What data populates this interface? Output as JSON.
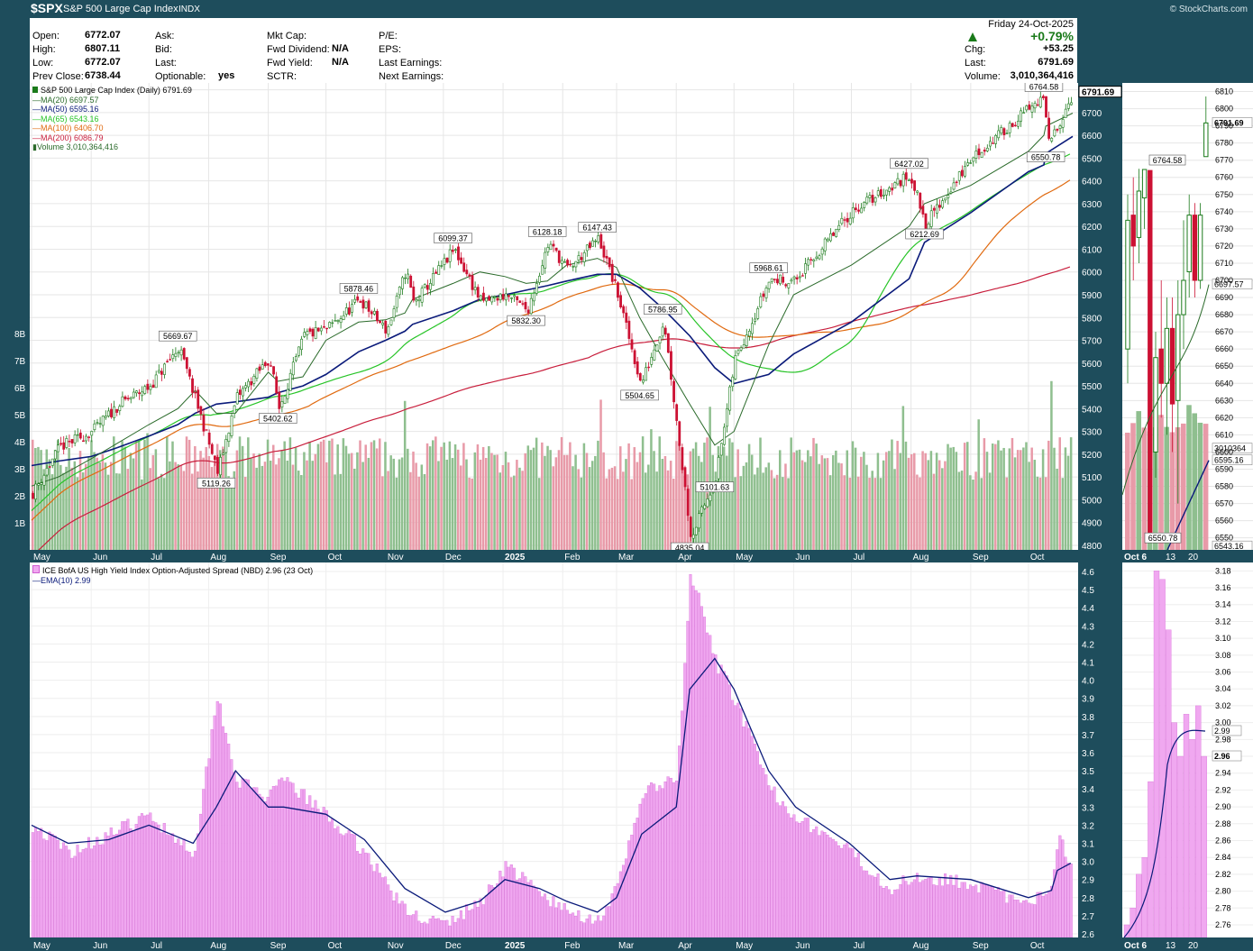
{
  "header": {
    "symbol": "$SPX",
    "name": "S&P 500 Large Cap Index",
    "type": "INDX",
    "copyright": "© StockCharts.com"
  },
  "info": {
    "col1": [
      {
        "label": "Open:",
        "value": "6772.07"
      },
      {
        "label": "High:",
        "value": "6807.11"
      },
      {
        "label": "Low:",
        "value": "6772.07"
      },
      {
        "label": "Prev Close:",
        "value": "6738.44"
      }
    ],
    "col2": [
      {
        "label": "Ask:",
        "value": ""
      },
      {
        "label": "Bid:",
        "value": ""
      },
      {
        "label": "Last:",
        "value": ""
      },
      {
        "label": "Optionable:",
        "value": "yes"
      }
    ],
    "col3": [
      {
        "label": "Mkt Cap:",
        "value": ""
      },
      {
        "label": "Fwd Dividend:",
        "value": "N/A"
      },
      {
        "label": "Fwd Yield:",
        "value": "N/A"
      },
      {
        "label": "SCTR:",
        "value": ""
      }
    ],
    "col4": [
      {
        "label": "P/E:",
        "value": ""
      },
      {
        "label": "EPS:",
        "value": ""
      },
      {
        "label": "Last Earnings:",
        "value": ""
      },
      {
        "label": "Next Earnings:",
        "value": ""
      }
    ],
    "date": "Friday  24-Oct-2025",
    "pct_change": "+0.79%",
    "chg_label": "Chg:",
    "chg_value": "+53.25",
    "last_label": "Last:",
    "last_value": "6791.69",
    "volume_label": "Volume:",
    "volume_value": "3,010,364,416"
  },
  "legend_main": [
    {
      "text": "S&P 500 Large Cap Index (Daily) 6791.69",
      "color": "#000000"
    },
    {
      "text": "MA(20) 6697.57",
      "color": "#2a6a2a"
    },
    {
      "text": "MA(50) 6595.16",
      "color": "#0a1a7a"
    },
    {
      "text": "MA(65) 6543.16",
      "color": "#27c427"
    },
    {
      "text": "MA(100) 6406.70",
      "color": "#e06a10"
    },
    {
      "text": "MA(200) 6086.79",
      "color": "#c81e3c"
    },
    {
      "text": "Volume 3,010,364,416",
      "color": "#2a6a2a"
    }
  ],
  "legend_spread": [
    {
      "text": "ICE BofA US High Yield Index Option-Adjusted Spread (NBD) 2.96 (23 Oct)",
      "color": "#000000"
    },
    {
      "text": "EMA(10) 2.99",
      "color": "#0a1a7a"
    }
  ],
  "axis": {
    "months": [
      "May",
      "Jun",
      "Jul",
      "Aug",
      "Sep",
      "Oct",
      "Nov",
      "Dec",
      "2025",
      "Feb",
      "Mar",
      "Apr",
      "May",
      "Jun",
      "Jul",
      "Aug",
      "Sep",
      "Oct"
    ],
    "zoom_months": [
      "Oct 6",
      "13",
      "20"
    ],
    "price_ticks": [
      "6800",
      "6700",
      "6600",
      "6500",
      "6400",
      "6300",
      "6200",
      "6100",
      "6000",
      "5900",
      "5800",
      "5700",
      "5600",
      "5500",
      "5400",
      "5300",
      "5200",
      "5100",
      "5000",
      "4900",
      "4800"
    ],
    "volume_ticks": [
      "8B",
      "7B",
      "6B",
      "5B",
      "4B",
      "3B",
      "2B",
      "1B"
    ],
    "zoom_price_ticks": [
      "6810",
      "6800",
      "6790",
      "6780",
      "6770",
      "6760",
      "6750",
      "6740",
      "6730",
      "6720",
      "6710",
      "6700",
      "6690",
      "6680",
      "6670",
      "6660",
      "6650",
      "6640",
      "6630",
      "6620",
      "6610",
      "6600",
      "6590",
      "6580",
      "6570",
      "6560",
      "6550"
    ],
    "spread_ticks": [
      "4.6",
      "4.5",
      "4.4",
      "4.3",
      "4.2",
      "4.1",
      "4.0",
      "3.9",
      "3.8",
      "3.7",
      "3.6",
      "3.5",
      "3.4",
      "3.3",
      "3.2",
      "3.1",
      "3.0",
      "2.9",
      "2.8",
      "2.7",
      "2.6"
    ],
    "zoom_spread_ticks": [
      "3.18",
      "3.16",
      "3.14",
      "3.12",
      "3.10",
      "3.08",
      "3.06",
      "3.04",
      "3.02",
      "3.00",
      "2.98",
      "2.96",
      "2.94",
      "2.92",
      "2.90",
      "2.88",
      "2.86",
      "2.84",
      "2.82",
      "2.80",
      "2.78",
      "2.76"
    ],
    "current_badges": {
      "price": "6791.69",
      "ma20": "6697.57",
      "volume": "3010364",
      "ma50": "6595.16",
      "ma65": "6543.16",
      "spread": "2.96",
      "ema": "2.99"
    }
  },
  "colors": {
    "background": "#1e4d5c",
    "up_candle": "#1a7a1a",
    "down_candle": "#cc1133",
    "vol_up": "#8fbf8f",
    "vol_down": "#e89aa8",
    "spread_fill": "#f0a8f0",
    "spread_edge": "#d05cd0"
  },
  "chart_data": [
    {
      "type": "line",
      "title": "S&P 500 Large Cap Index (Daily) 6791.69",
      "xlabel": "",
      "ylabel": "",
      "ylim": [
        4780,
        6830
      ],
      "x": [
        "2024-05-01",
        "2024-05-15",
        "2024-06-01",
        "2024-06-15",
        "2024-07-01",
        "2024-07-16",
        "2024-07-25",
        "2024-08-05",
        "2024-08-15",
        "2024-09-01",
        "2024-09-06",
        "2024-09-19",
        "2024-10-01",
        "2024-10-18",
        "2024-11-01",
        "2024-11-11",
        "2024-11-15",
        "2024-12-06",
        "2024-12-20",
        "2025-01-02",
        "2025-01-13",
        "2025-01-24",
        "2025-02-03",
        "2025-02-19",
        "2025-03-01",
        "2025-03-13",
        "2025-03-25",
        "2025-04-08",
        "2025-04-21",
        "2025-05-01",
        "2025-05-19",
        "2025-06-01",
        "2025-07-01",
        "2025-07-31",
        "2025-08-08",
        "2025-09-01",
        "2025-10-01",
        "2025-10-09",
        "2025-10-10",
        "2025-10-24"
      ],
      "series": [
        {
          "name": "S&P 500 Large Cap Index (Daily) 6791.69",
          "values": [
            5030,
            5230,
            5300,
            5420,
            5500,
            5669.67,
            5430,
            5119.26,
            5450,
            5620,
            5402.62,
            5720,
            5750,
            5878.46,
            5740,
            6010,
            5860,
            6099.37,
            5867,
            5900,
            5832,
            6128,
            6010,
            6147.43,
            5900,
            5504.65,
            5786.95,
            4835.04,
            5101.63,
            5620,
            5968.61,
            5960,
            6270,
            6427.02,
            6212.69,
            6500,
            6720,
            6764.58,
            6550.78,
            6791.69
          ]
        },
        {
          "name": "MA(20) 6697.57",
          "values": [
            5060,
            5100,
            5180,
            5250,
            5330,
            5400,
            5480,
            5380,
            5380,
            5560,
            5520,
            5540,
            5700,
            5780,
            5790,
            5820,
            5880,
            5950,
            6000,
            5980,
            5950,
            5960,
            6030,
            6060,
            6020,
            5800,
            5620,
            5420,
            5240,
            5300,
            5680,
            5900,
            6030,
            6200,
            6300,
            6380,
            6530,
            6600,
            6640,
            6697.57
          ]
        },
        {
          "name": "MA(50) 6595.16",
          "values": [
            5150,
            5170,
            5190,
            5230,
            5280,
            5330,
            5380,
            5420,
            5430,
            5450,
            5470,
            5500,
            5550,
            5650,
            5700,
            5740,
            5770,
            5830,
            5880,
            5900,
            5920,
            5940,
            5960,
            5990,
            5990,
            5930,
            5840,
            5720,
            5580,
            5510,
            5550,
            5640,
            5780,
            5970,
            6130,
            6260,
            6440,
            6470,
            6520,
            6595.16
          ]
        }
      ]
    },
    {
      "type": "area",
      "title": "ICE BofA US High Yield Index Option-Adjusted Spread (NBD) 2.96 (23 Oct)",
      "xlabel": "",
      "ylabel": "",
      "ylim": [
        2.58,
        4.65
      ],
      "x": [
        "2024-05-01",
        "2024-05-20",
        "2024-06-10",
        "2024-07-01",
        "2024-07-24",
        "2024-08-05",
        "2024-08-15",
        "2024-09-01",
        "2024-09-09",
        "2024-10-01",
        "2024-10-21",
        "2024-11-11",
        "2024-12-02",
        "2024-12-20",
        "2025-01-02",
        "2025-01-20",
        "2025-02-03",
        "2025-02-19",
        "2025-03-01",
        "2025-03-14",
        "2025-04-01",
        "2025-04-08",
        "2025-04-21",
        "2025-05-01",
        "2025-05-19",
        "2025-06-02",
        "2025-06-30",
        "2025-07-21",
        "2025-08-04",
        "2025-09-01",
        "2025-10-01",
        "2025-10-13",
        "2025-10-16",
        "2025-10-23"
      ],
      "series": [
        {
          "name": "ICE BofA US High Yield Index Option-Adjusted Spread (NBD) 2.96 (23 Oct)",
          "values": [
            3.2,
            3.05,
            3.15,
            3.25,
            3.05,
            3.92,
            3.45,
            3.35,
            3.45,
            3.25,
            3.05,
            2.72,
            2.65,
            2.78,
            2.98,
            2.82,
            2.72,
            2.68,
            2.85,
            3.38,
            3.45,
            4.6,
            4.1,
            3.9,
            3.4,
            3.25,
            3.05,
            2.85,
            2.92,
            2.88,
            2.75,
            2.88,
            3.17,
            2.96
          ]
        },
        {
          "name": "EMA(10) 2.99",
          "values": [
            3.2,
            3.1,
            3.12,
            3.2,
            3.1,
            3.3,
            3.5,
            3.3,
            3.3,
            3.26,
            3.12,
            2.85,
            2.72,
            2.78,
            2.9,
            2.85,
            2.78,
            2.72,
            2.8,
            3.15,
            3.3,
            3.95,
            4.12,
            3.95,
            3.5,
            3.3,
            3.1,
            2.9,
            2.92,
            2.9,
            2.8,
            2.84,
            2.95,
            2.99
          ]
        }
      ]
    }
  ]
}
